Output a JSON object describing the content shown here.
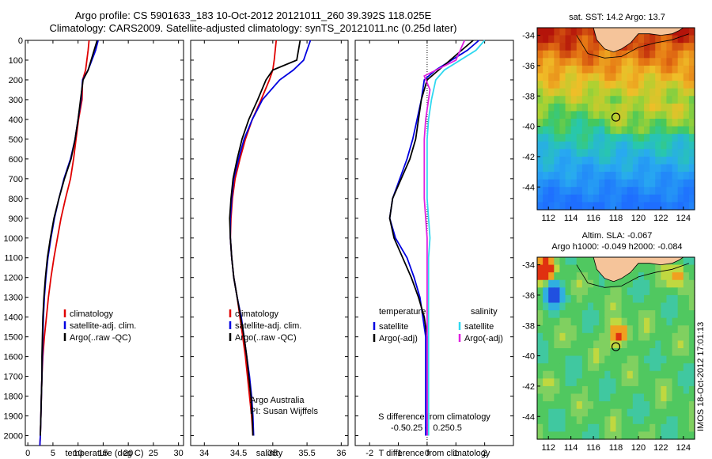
{
  "header": {
    "title1": "Argo profile: CS 5901633_183 10-Oct-2012 20121011_260 39.392S 118.025E",
    "title2": "Climatology: CARS2009. Satellite-adjusted climatology: synTS_20121011.nc (0.25d later)"
  },
  "colors": {
    "climatology": "#e00000",
    "satellite": "#0000e0",
    "argo": "#000000",
    "sal_satellite": "#30d8f0",
    "sal_argo": "#e020e0",
    "land": "#f5c49a"
  },
  "chart_data": [
    {
      "id": "temperature",
      "type": "line",
      "xlabel": "temperature (deg C)",
      "ylabel": "",
      "xlim": [
        -0.5,
        31
      ],
      "ylim": [
        2050,
        0
      ],
      "xticks": [
        0,
        5,
        10,
        15,
        20,
        25,
        30
      ],
      "xtick_labels": [
        "0",
        "5",
        "10",
        "15",
        "20",
        "25",
        "30"
      ],
      "yticks": [
        0,
        100,
        200,
        300,
        400,
        500,
        600,
        700,
        800,
        900,
        1000,
        1100,
        1200,
        1300,
        1400,
        1500,
        1600,
        1700,
        1800,
        1900,
        2000
      ],
      "ytick_labels": [
        "0",
        "100",
        "200",
        "300",
        "400",
        "500",
        "600",
        "700",
        "800",
        "900",
        "1000",
        "1100",
        "1200",
        "1300",
        "1400",
        "1500",
        "1600",
        "1700",
        "1800",
        "1900",
        "2000"
      ],
      "legend": [
        "climatology",
        "satellite-adj. clim.",
        "Argo(..raw -QC)"
      ],
      "series": [
        {
          "name": "climatology",
          "color": "#e00000",
          "x": [
            12.2,
            12.0,
            11.5,
            10.9,
            10.8,
            10.1,
            9.6,
            9.1,
            8.5,
            7.5,
            6.6,
            5.9,
            5.2,
            4.6,
            4.1,
            3.7,
            3.3,
            3.0,
            2.8,
            2.7,
            2.6,
            2.5,
            2.4
          ],
          "y": [
            0,
            50,
            150,
            200,
            300,
            400,
            500,
            600,
            700,
            800,
            900,
            1000,
            1100,
            1200,
            1300,
            1400,
            1500,
            1600,
            1700,
            1800,
            1900,
            2000,
            2050
          ]
        },
        {
          "name": "satellite-adj. clim.",
          "color": "#0000e0",
          "x": [
            14.0,
            13.5,
            12.0,
            10.9,
            10.6,
            10.0,
            9.4,
            8.5,
            7.2,
            6.2,
            5.3,
            4.6,
            4.0,
            3.6,
            3.3,
            3.1,
            3.0,
            2.9,
            2.8,
            2.7,
            2.6,
            2.5,
            2.4
          ],
          "y": [
            0,
            50,
            150,
            200,
            300,
            400,
            500,
            600,
            700,
            800,
            900,
            1000,
            1100,
            1200,
            1300,
            1400,
            1500,
            1600,
            1700,
            1800,
            1900,
            2000,
            2050
          ]
        },
        {
          "name": "Argo(..raw -QC)",
          "color": "#000000",
          "x": [
            13.8,
            13.2,
            12.0,
            11.0,
            10.5,
            10.0,
            9.4,
            8.6,
            7.3,
            6.2,
            5.2,
            4.5,
            3.9,
            3.5,
            3.2,
            3.0,
            2.9,
            2.8,
            2.8,
            2.7,
            2.6,
            2.5
          ],
          "y": [
            0,
            50,
            150,
            200,
            300,
            400,
            500,
            600,
            700,
            800,
            900,
            1000,
            1100,
            1200,
            1300,
            1400,
            1500,
            1600,
            1700,
            1800,
            1900,
            2000
          ]
        }
      ]
    },
    {
      "id": "salinity",
      "type": "line",
      "xlabel": "salinity",
      "ylabel": "",
      "xlim": [
        33.8,
        36.1
      ],
      "ylim": [
        2050,
        0
      ],
      "xticks": [
        34,
        34.5,
        35,
        35.5,
        36
      ],
      "xtick_labels": [
        "34",
        "34.5",
        "35",
        "35.5",
        "36"
      ],
      "legend": [
        "climatology",
        "satellite-adj. clim.",
        "Argo(..raw -QC)"
      ],
      "annotation": [
        "Argo Australia",
        "PI: Susan Wijffels"
      ],
      "series": [
        {
          "name": "climatology",
          "color": "#e00000",
          "x": [
            35.05,
            35.02,
            35.0,
            34.95,
            34.83,
            34.7,
            34.6,
            34.52,
            34.45,
            34.41,
            34.39,
            34.38,
            34.4,
            34.43,
            34.48,
            34.52,
            34.56,
            34.6,
            34.63,
            34.66,
            34.69,
            34.71
          ],
          "y": [
            0,
            100,
            150,
            200,
            300,
            400,
            500,
            600,
            700,
            800,
            900,
            1000,
            1100,
            1200,
            1300,
            1400,
            1500,
            1600,
            1700,
            1800,
            1900,
            2000
          ]
        },
        {
          "name": "satellite-adj. clim.",
          "color": "#0000e0",
          "x": [
            35.55,
            35.45,
            35.3,
            35.1,
            34.85,
            34.7,
            34.58,
            34.5,
            34.43,
            34.4,
            34.38,
            34.38,
            34.4,
            34.43,
            34.48,
            34.54,
            34.58,
            34.62,
            34.66,
            34.69,
            34.71,
            34.72
          ],
          "y": [
            0,
            100,
            150,
            200,
            300,
            400,
            500,
            600,
            700,
            800,
            900,
            1000,
            1100,
            1200,
            1300,
            1400,
            1500,
            1600,
            1700,
            1800,
            1900,
            2000
          ]
        },
        {
          "name": "Argo(..raw -QC)",
          "color": "#000000",
          "x": [
            35.4,
            35.35,
            35.0,
            34.9,
            34.78,
            34.65,
            34.55,
            34.48,
            34.42,
            34.39,
            34.37,
            34.38,
            34.4,
            34.43,
            34.48,
            34.53,
            34.58,
            34.62,
            34.65,
            34.68,
            34.7,
            34.71
          ],
          "y": [
            0,
            100,
            150,
            200,
            300,
            400,
            500,
            600,
            700,
            800,
            900,
            1000,
            1100,
            1200,
            1300,
            1400,
            1500,
            1600,
            1700,
            1800,
            1900,
            2000
          ]
        }
      ]
    },
    {
      "id": "difference",
      "type": "line",
      "xlabel": "T difference from climatology",
      "top_xlabel": "S difference from climatology",
      "ylabel": "",
      "xlim": [
        -2.5,
        3.0
      ],
      "ylim": [
        2050,
        0
      ],
      "xticks": [
        -2,
        -1,
        0,
        1,
        2
      ],
      "xtick_labels": [
        "-2",
        "-1",
        "0",
        "1",
        "2"
      ],
      "s_xticks": [
        -0.5,
        -0.25,
        0,
        0.25,
        0.5
      ],
      "s_xtick_labels": [
        "-0.5",
        "-0.25",
        "0",
        "0.25",
        "0.5"
      ],
      "legend_left_title": "temperature",
      "legend_right_title": "salinity",
      "legend_left": [
        "satellite",
        "Argo(-adj)"
      ],
      "legend_right": [
        "satellite",
        "Argo(-adj)"
      ],
      "series": [
        {
          "name": "T satellite",
          "color": "#0000e0",
          "x": [
            1.8,
            1.4,
            0.3,
            -0.1,
            -0.2,
            -0.35,
            -0.5,
            -0.7,
            -0.95,
            -1.2,
            -1.3,
            -1.1,
            -0.7,
            -0.45,
            -0.25,
            -0.15,
            -0.05,
            -0.05,
            -0.05,
            -0.05,
            -0.05
          ],
          "y": [
            0,
            50,
            150,
            200,
            300,
            400,
            500,
            600,
            700,
            800,
            900,
            1000,
            1100,
            1200,
            1300,
            1400,
            1500,
            1600,
            1700,
            1800,
            2000
          ]
        },
        {
          "name": "T Argo",
          "color": "#000000",
          "x": [
            1.6,
            1.2,
            0.4,
            0.0,
            -0.2,
            -0.3,
            -0.4,
            -0.6,
            -0.9,
            -1.2,
            -1.3,
            -1.15,
            -0.85,
            -0.55,
            -0.3,
            -0.1,
            0.0,
            0.0,
            0.0,
            0.0,
            0.0
          ],
          "y": [
            0,
            50,
            150,
            200,
            300,
            400,
            500,
            600,
            700,
            800,
            900,
            1000,
            1100,
            1200,
            1300,
            1400,
            1500,
            1600,
            1700,
            1800,
            2000
          ]
        },
        {
          "name": "S satellite",
          "color": "#30d8f0",
          "x": [
            2.0,
            1.7,
            0.6,
            0.3,
            0.15,
            0.05,
            0.0,
            0.0,
            0.0,
            0.0,
            0.05,
            0.1,
            0.05,
            0.05,
            0.05,
            0.05,
            0.05,
            0.05,
            0.05
          ],
          "y": [
            0,
            50,
            150,
            200,
            300,
            400,
            500,
            600,
            700,
            800,
            900,
            1000,
            1100,
            1200,
            1300,
            1500,
            1700,
            1900,
            2000
          ]
        },
        {
          "name": "S Argo",
          "color": "#e020e0",
          "x": [
            1.3,
            1.0,
            -0.1,
            0.1,
            0.05,
            -0.05,
            -0.1,
            -0.1,
            -0.1,
            -0.1,
            -0.05,
            0.0,
            0.0,
            0.0,
            0.0,
            0.0,
            0.0,
            0.0
          ],
          "y": [
            0,
            100,
            180,
            250,
            300,
            400,
            500,
            600,
            700,
            800,
            900,
            1000,
            1100,
            1200,
            1300,
            1500,
            1700,
            2000
          ]
        }
      ]
    },
    {
      "id": "sst_map",
      "type": "heatmap",
      "title": "sat. SST: 14.2 Argo: 13.7",
      "xlim": [
        111,
        125
      ],
      "ylim": [
        -45.5,
        -33.5
      ],
      "xticks": [
        112,
        114,
        116,
        118,
        120,
        122,
        124
      ],
      "yticks": [
        -34,
        -36,
        -38,
        -40,
        -42,
        -44
      ],
      "marker": {
        "lon": 118.0,
        "lat": -39.4
      }
    },
    {
      "id": "sla_map",
      "type": "heatmap",
      "title": "Altim. SLA: -0.067",
      "subtitle": "Argo h1000: -0.049 h2000: -0.084",
      "xlim": [
        111,
        125
      ],
      "ylim": [
        -45.5,
        -33.5
      ],
      "xticks": [
        112,
        114,
        116,
        118,
        120,
        122,
        124
      ],
      "yticks": [
        -34,
        -36,
        -38,
        -40,
        -42,
        -44
      ],
      "marker": {
        "lon": 118.0,
        "lat": -39.4
      }
    }
  ],
  "footer": {
    "watermark": "IMOS 18-Oct-2012 17:01:13"
  }
}
